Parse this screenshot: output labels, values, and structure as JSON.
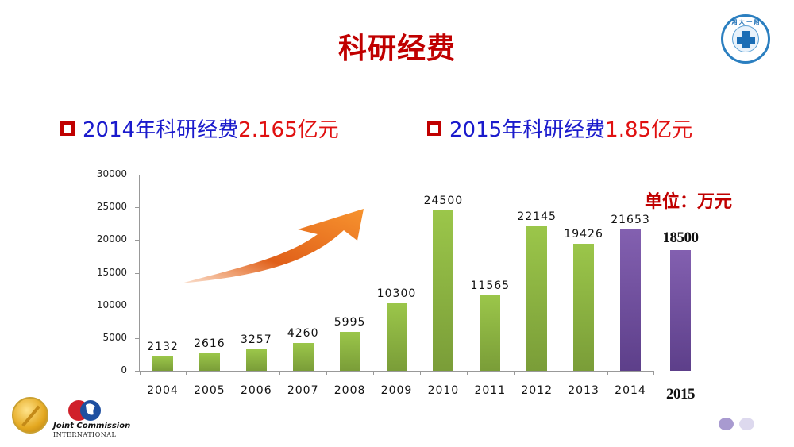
{
  "slide": {
    "title": "科研经费",
    "unit_label": "单位：万元",
    "bullets": [
      {
        "prefix": "2014年科研经费",
        "value": "2.165亿元"
      },
      {
        "prefix": "2015年科研经费",
        "value": "1.85亿元"
      }
    ],
    "logo": {
      "icon": "hospital-emblem-icon",
      "ring_text": "湘 大 一 附"
    },
    "footer": {
      "jci_line1": "Joint Commission",
      "jci_line2": "INTERNATIONAL"
    },
    "pagination_dots": 2,
    "colors": {
      "title_red": "#c00000",
      "bullet_blue": "#1a1acc",
      "value_red": "#e01010",
      "bar_green": "#8cb542",
      "bar_purple": "#7152a0",
      "arrow_orange": "#f07a20"
    }
  },
  "chart_data": {
    "type": "bar",
    "title": "科研经费",
    "xlabel": "",
    "ylabel": "万元",
    "ylim": [
      0,
      30000
    ],
    "yticks": [
      "0",
      "5000",
      "10000",
      "15000",
      "20000",
      "25000",
      "30000"
    ],
    "categories": [
      "2004",
      "2005",
      "2006",
      "2007",
      "2008",
      "2009",
      "2010",
      "2011",
      "2012",
      "2013",
      "2014",
      "2015"
    ],
    "values": [
      2132,
      2616,
      3257,
      4260,
      5995,
      10300,
      24500,
      11565,
      22145,
      19426,
      21653,
      18500
    ],
    "labels": [
      "2132",
      "2616",
      "3257",
      "4260",
      "5995",
      "10300",
      "24500",
      "11565",
      "22145",
      "19426",
      "21653",
      "18500"
    ],
    "bar_colors": [
      "green",
      "green",
      "green",
      "green",
      "green",
      "green",
      "green",
      "green",
      "green",
      "green",
      "purple",
      "purple"
    ],
    "grid": false,
    "legend": null,
    "annotations": [
      "单位：万元",
      "upward orange trend arrow"
    ]
  }
}
